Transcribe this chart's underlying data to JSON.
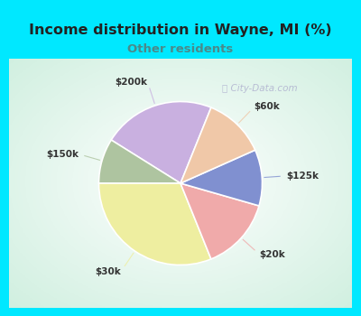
{
  "title": "Income distribution in Wayne, MI (%)",
  "subtitle": "Other residents",
  "title_color": "#222222",
  "subtitle_color": "#4a8a8a",
  "border_color": "#00e8ff",
  "border_width": 8,
  "labels": [
    "$200k",
    "$150k",
    "$30k",
    "$20k",
    "$125k",
    "$60k"
  ],
  "sizes": [
    20,
    8,
    28,
    13,
    10,
    11
  ],
  "colors": [
    "#c9b0e0",
    "#aec4a0",
    "#eeeea0",
    "#f0aaaa",
    "#8090d0",
    "#f0c8a8"
  ],
  "startangle": 68,
  "watermark": "ⓘ City-Data.com",
  "watermark_color": "#aaaacc",
  "line_colors": [
    "#c9b0e0",
    "#aec4a0",
    "#eeeea0",
    "#f0aaaa",
    "#8090d0",
    "#f0c8a8"
  ]
}
